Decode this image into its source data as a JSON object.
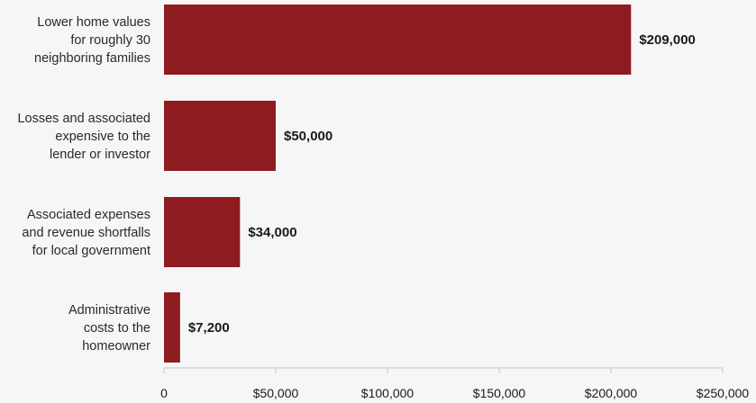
{
  "chart_data": {
    "type": "bar",
    "orientation": "horizontal",
    "title": "",
    "xlabel": "",
    "ylabel": "",
    "categories": [
      [
        "Lower home values",
        "for roughly 30",
        "neighboring families"
      ],
      [
        "Losses and associated",
        "expensive to the",
        "lender or investor"
      ],
      [
        "Associated expenses",
        "and revenue shortfalls",
        "for local government"
      ],
      [
        "Administrative",
        "costs to the",
        "homeowner"
      ]
    ],
    "values": [
      209000,
      50000,
      34000,
      7200
    ],
    "data_labels": [
      "$209,000",
      "$50,000",
      "$34,000",
      "$7,200"
    ],
    "xlim": [
      0,
      250000
    ],
    "xticks": [
      0,
      50000,
      100000,
      150000,
      200000,
      250000
    ],
    "xtick_labels": [
      "0",
      "$50,000",
      "$100,000",
      "$150,000",
      "$200,000",
      "$250,000"
    ],
    "bar_color": "#8e1b1f",
    "axis_color": "#cfcfcf",
    "grid": false,
    "legend": "none"
  }
}
